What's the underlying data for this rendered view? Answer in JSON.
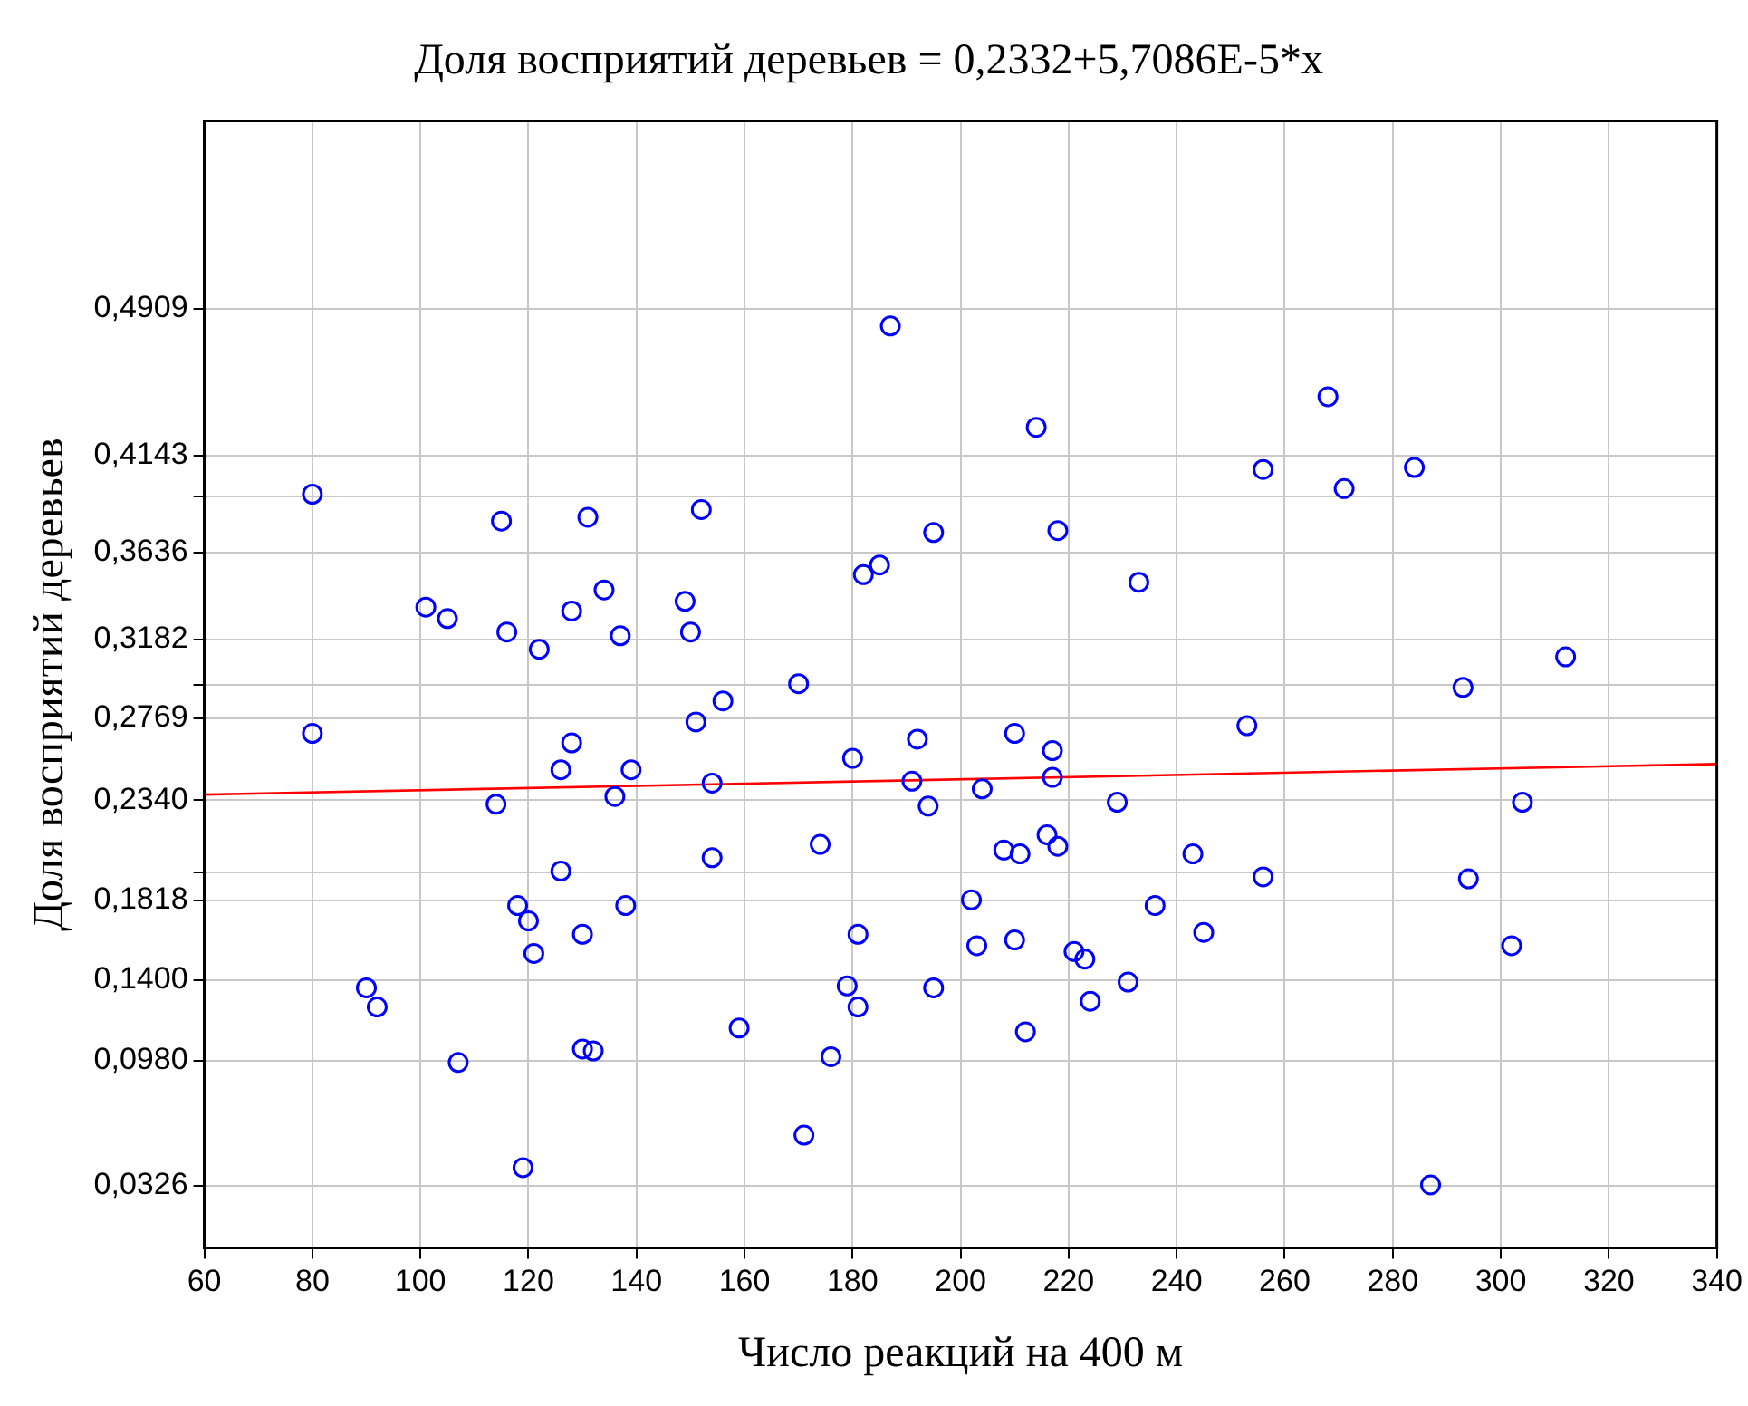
{
  "chart_data": {
    "type": "scatter",
    "title": "Доля восприятий деревьев = 0,2332+5,7086E-5*x",
    "xlabel": "Число реакций на 400 м",
    "ylabel": "Доля восприятий деревьев",
    "xlim": [
      60,
      340
    ],
    "xticks": [
      60,
      80,
      100,
      120,
      140,
      160,
      180,
      200,
      220,
      240,
      260,
      280,
      300,
      320,
      340
    ],
    "ylim": [
      0,
      0.5891
    ],
    "yticks": [
      {
        "value": 0.0326,
        "label": "0,0326"
      },
      {
        "value": 0.098,
        "label": "0,0980"
      },
      {
        "value": 0.14,
        "label": "0,1400"
      },
      {
        "value": 0.1818,
        "label": "0,1818"
      },
      {
        "value": 0.1964,
        "label": null
      },
      {
        "value": 0.234,
        "label": "0,2340"
      },
      {
        "value": 0.2769,
        "label": "0,2769"
      },
      {
        "value": 0.2945,
        "label": null
      },
      {
        "value": 0.3182,
        "label": "0,3182"
      },
      {
        "value": 0.3636,
        "label": "0,3636"
      },
      {
        "value": 0.3927,
        "label": null
      },
      {
        "value": 0.4143,
        "label": "0,4143"
      },
      {
        "value": 0.4909,
        "label": "0,4909"
      }
    ],
    "grid": true,
    "legend": false,
    "marker": "circle",
    "series": [
      {
        "color": "#0000ff",
        "x": [
          80,
          80,
          90,
          92,
          101,
          105,
          107,
          115,
          116,
          114,
          118,
          120,
          121,
          122,
          119,
          126,
          128,
          126,
          128,
          131,
          130,
          130,
          132,
          134,
          137,
          136,
          139,
          138,
          149,
          150,
          151,
          152,
          154,
          154,
          156,
          159,
          170,
          171,
          174,
          176,
          179,
          180,
          181,
          181,
          182,
          185,
          187,
          191,
          192,
          194,
          195,
          195,
          202,
          203,
          204,
          208,
          210,
          210,
          211,
          212,
          214,
          216,
          217,
          217,
          218,
          218,
          221,
          223,
          224,
          229,
          231,
          233,
          236,
          243,
          245,
          253,
          256,
          256,
          268,
          271,
          284,
          287,
          293,
          294,
          304,
          302,
          312
        ],
        "values": [
          0.394,
          0.269,
          0.136,
          0.126,
          0.335,
          0.329,
          0.097,
          0.38,
          0.322,
          0.232,
          0.179,
          0.171,
          0.154,
          0.313,
          0.042,
          0.197,
          0.264,
          0.25,
          0.333,
          0.382,
          0.164,
          0.104,
          0.103,
          0.344,
          0.32,
          0.236,
          0.25,
          0.179,
          0.338,
          0.322,
          0.275,
          0.386,
          0.243,
          0.204,
          0.286,
          0.115,
          0.295,
          0.059,
          0.211,
          0.1,
          0.137,
          0.256,
          0.164,
          0.126,
          0.352,
          0.357,
          0.482,
          0.244,
          0.266,
          0.231,
          0.374,
          0.136,
          0.182,
          0.158,
          0.24,
          0.208,
          0.269,
          0.161,
          0.206,
          0.113,
          0.429,
          0.216,
          0.26,
          0.246,
          0.375,
          0.21,
          0.155,
          0.151,
          0.129,
          0.233,
          0.139,
          0.348,
          0.179,
          0.206,
          0.165,
          0.273,
          0.407,
          0.194,
          0.445,
          0.397,
          0.408,
          0.033,
          0.293,
          0.193,
          0.233,
          0.158,
          0.309
        ]
      },
      {
        "type": "line",
        "marker": "none",
        "color": "#ff0000",
        "x": [
          60,
          340
        ],
        "values": [
          0.237,
          0.253
        ]
      }
    ]
  }
}
